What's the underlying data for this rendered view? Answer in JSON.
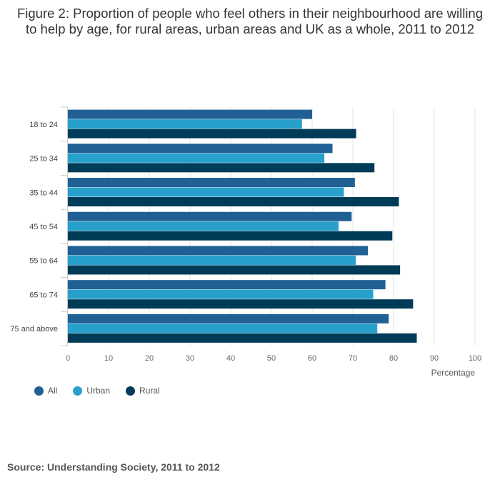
{
  "title": "Figure 2: Proportion of people who feel others in their neighbourhood are willing to help by age, for rural areas, urban areas and UK as a whole, 2011 to 2012",
  "source": "Source: Understanding Society, 2011 to 2012",
  "chart_data": {
    "type": "bar",
    "orientation": "horizontal",
    "title": "Figure 2: Proportion of people who feel others in their neighbourhood are willing to help by age, for rural areas, urban areas and UK as a whole, 2011 to 2012",
    "xlabel": "Percentage",
    "ylabel": "",
    "xlim": [
      0,
      100
    ],
    "xticks": [
      0,
      10,
      20,
      30,
      40,
      50,
      60,
      70,
      80,
      90,
      100
    ],
    "grid": true,
    "legend_position": "bottom-left",
    "categories": [
      "18 to 24",
      "25 to 34",
      "35 to 44",
      "45 to 54",
      "55 to 64",
      "65 to 74",
      "75 and above"
    ],
    "series": [
      {
        "name": "All",
        "color": "#206095",
        "values": [
          60,
          65,
          70.5,
          69.7,
          73.7,
          78,
          78.8
        ]
      },
      {
        "name": "Urban",
        "color": "#27a0cc",
        "values": [
          57.5,
          63,
          67.8,
          66.5,
          70.7,
          75,
          76
        ]
      },
      {
        "name": "Rural",
        "color": "#003c57",
        "values": [
          70.8,
          75.3,
          81.3,
          79.7,
          81.6,
          84.8,
          85.7
        ]
      }
    ]
  }
}
